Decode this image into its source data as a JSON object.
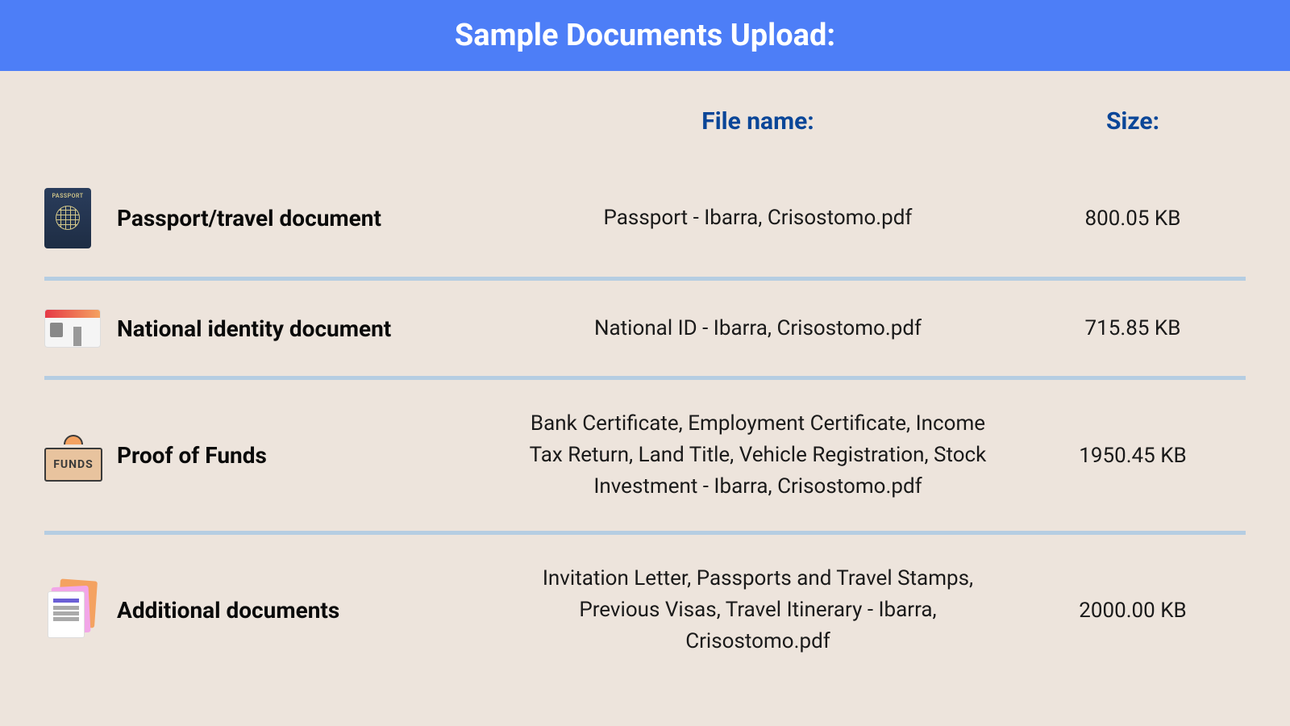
{
  "header": {
    "title": "Sample Documents Upload:"
  },
  "columns": {
    "filename": "File name:",
    "size": "Size:"
  },
  "documents": [
    {
      "icon": "passport-icon",
      "label": "Passport/travel document",
      "filename": "Passport - Ibarra, Crisostomo.pdf",
      "size": "800.05 KB"
    },
    {
      "icon": "idcard-icon",
      "label": "National identity document",
      "filename": "National ID - Ibarra, Crisostomo.pdf",
      "size": "715.85 KB"
    },
    {
      "icon": "funds-icon",
      "label": "Proof of Funds",
      "filename": "Bank Certificate, Employment Certificate, Income Tax Return, Land Title, Vehicle Registration, Stock Investment  - Ibarra, Crisostomo.pdf",
      "size": "1950.45 KB"
    },
    {
      "icon": "documents-icon",
      "label": "Additional documents",
      "filename": "Invitation Letter, Passports and Travel Stamps, Previous Visas, Travel Itinerary - Ibarra, Crisostomo.pdf",
      "size": "2000.00 KB"
    }
  ],
  "styling": {
    "header_bg": "#4d7ef7",
    "header_text": "#ffffff",
    "body_bg": "#ede4dc",
    "column_header_color": "#0a4698",
    "divider_color": "#b5cde2",
    "text_color": "#0a0a0a"
  }
}
